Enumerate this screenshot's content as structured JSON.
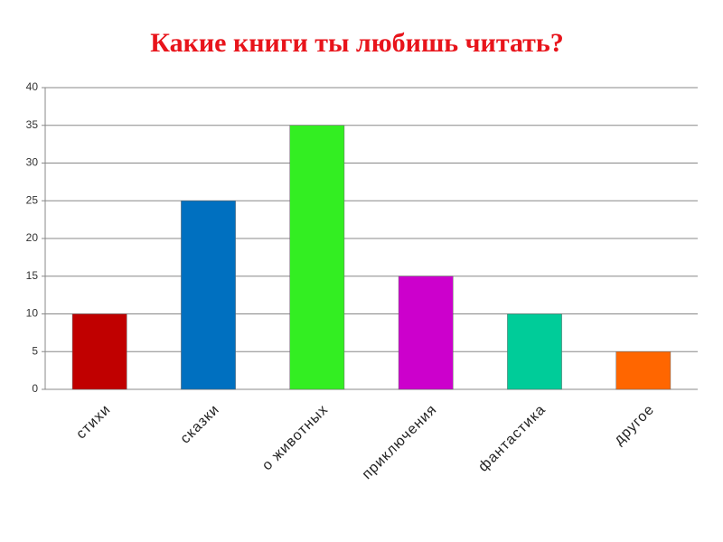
{
  "chart_data": {
    "type": "bar",
    "title": "Какие книги ты любишь читать?",
    "categories": [
      "стихи",
      "сказки",
      "о животных",
      "приключения",
      "фантастика",
      "другое"
    ],
    "values": [
      10,
      25,
      35,
      15,
      10,
      5
    ],
    "colors": [
      "#c00000",
      "#0070c0",
      "#33ee22",
      "#cc00cc",
      "#00cc99",
      "#ff6600"
    ],
    "ylim": [
      0,
      40
    ],
    "yticks": [
      0,
      5,
      10,
      15,
      20,
      25,
      30,
      35,
      40
    ],
    "grid": true
  }
}
